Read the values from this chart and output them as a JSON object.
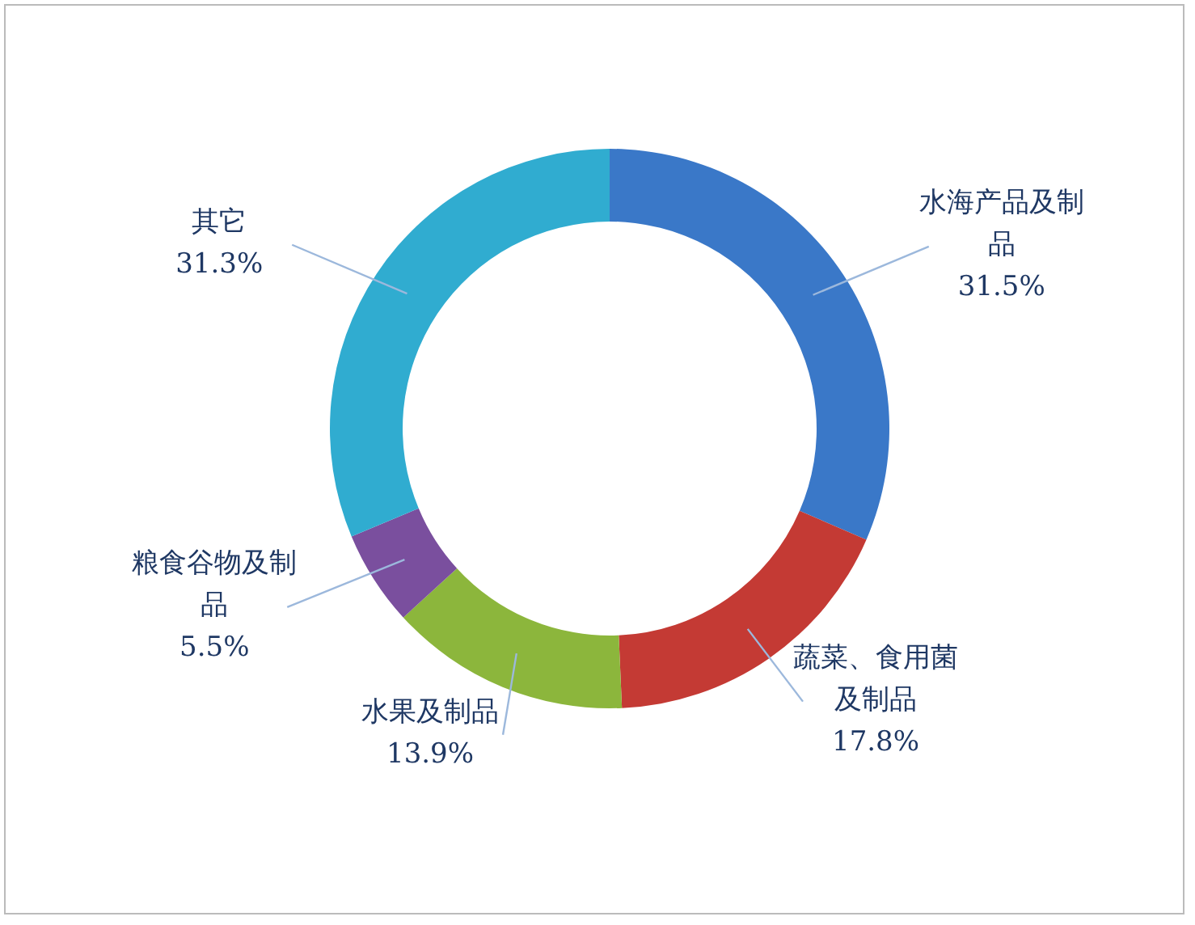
{
  "chart_data": {
    "type": "donut",
    "categories": [
      "水海产品及制品",
      "蔬菜、食用菌及制品",
      "水果及制品",
      "粮食谷物及制品",
      "其它"
    ],
    "values": [
      31.5,
      17.8,
      13.9,
      5.5,
      31.3
    ],
    "colors": [
      "#3a78c8",
      "#c43a34",
      "#8cb63c",
      "#7a4f9e",
      "#30acd0"
    ],
    "value_labels": [
      "31.5%",
      "17.8%",
      "13.9%",
      "5.5%",
      "31.3%"
    ]
  }
}
